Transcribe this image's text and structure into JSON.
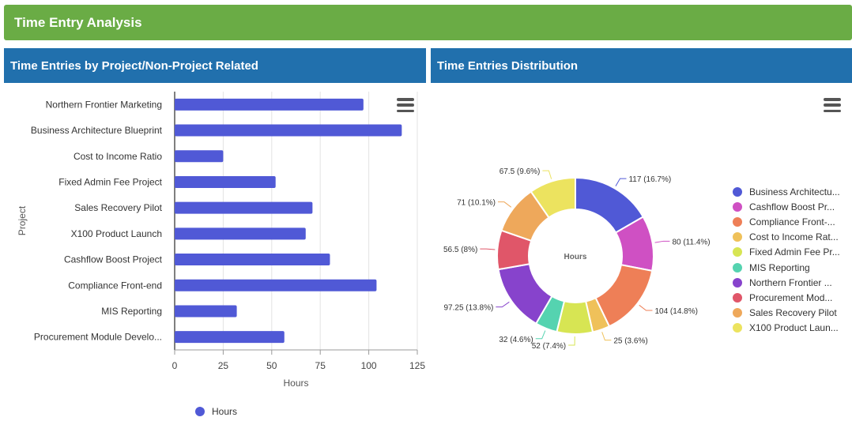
{
  "banner": {
    "title": "Time Entry Analysis"
  },
  "bar_panel": {
    "title": "Time Entries by Project/Non-Project Related",
    "menu_icon": "hamburger-menu-icon"
  },
  "donut_panel": {
    "title": "Time Entries Distribution",
    "menu_icon": "hamburger-menu-icon"
  },
  "colors": {
    "banner": "#6aac45",
    "panel_header": "#2170ad",
    "bar": "#5059d6"
  },
  "chart_data": [
    {
      "type": "bar",
      "orientation": "horizontal",
      "categories": [
        "Northern Frontier Marketing",
        "Business Architecture Blueprint",
        "Cost to Income Ratio",
        "Fixed Admin Fee Project",
        "Sales Recovery Pilot",
        "X100 Product Launch",
        "Cashflow Boost Project",
        "Compliance Front-end",
        "MIS Reporting",
        "Procurement Module Develo..."
      ],
      "series": [
        {
          "name": "Hours",
          "values": [
            97.25,
            117,
            25,
            52,
            71,
            67.5,
            80,
            104,
            32,
            56.5
          ],
          "color": "#5059d6"
        }
      ],
      "xlabel": "Hours",
      "ylabel": "Project",
      "xlim": [
        0,
        125
      ],
      "xticks": [
        "0",
        "25",
        "50",
        "75",
        "100",
        "125"
      ],
      "grid": true,
      "legend_position": "bottom-left"
    },
    {
      "type": "pie",
      "variant": "donut",
      "center_label": "Hours",
      "slices": [
        {
          "label": "Business Architectu...",
          "value": 117,
          "data_label": "117 (16.7%)",
          "color": "#5059d6"
        },
        {
          "label": "Cashflow Boost Pr...",
          "value": 80,
          "data_label": "80 (11.4%)",
          "color": "#cf50c3"
        },
        {
          "label": "Compliance Front-...",
          "value": 104,
          "data_label": "104 (14.8%)",
          "color": "#ee7f57"
        },
        {
          "label": "Cost to Income Rat...",
          "value": 25,
          "data_label": "25 (3.6%)",
          "color": "#efc15a"
        },
        {
          "label": "Fixed Admin Fee Pr...",
          "value": 52,
          "data_label": "52 (7.4%)",
          "color": "#d7e553"
        },
        {
          "label": "MIS Reporting",
          "value": 32,
          "data_label": "32 (4.6%)",
          "color": "#55d3b0"
        },
        {
          "label": "Northern Frontier ...",
          "value": 97.25,
          "data_label": "97.25 (13.8%)",
          "color": "#8743cc"
        },
        {
          "label": "Procurement Mod...",
          "value": 56.5,
          "data_label": "56.5 (8%)",
          "color": "#e05669"
        },
        {
          "label": "Sales Recovery Pilot",
          "value": 71,
          "data_label": "71 (10.1%)",
          "color": "#eea85b"
        },
        {
          "label": "X100 Product Laun...",
          "value": 67.5,
          "data_label": "67.5 (9.6%)",
          "color": "#ece35f"
        }
      ],
      "legend_position": "right"
    }
  ]
}
